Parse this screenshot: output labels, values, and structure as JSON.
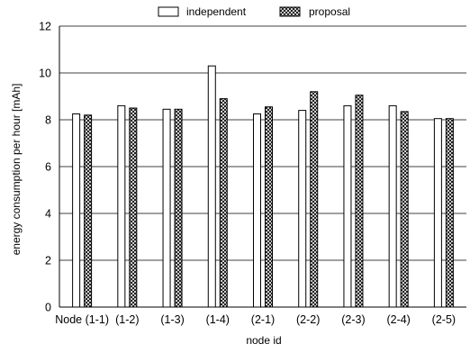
{
  "chart_data": {
    "type": "bar",
    "title": "",
    "xlabel": "node id",
    "ylabel": "energy consumption per hour [mAh]",
    "ylim": [
      0,
      12
    ],
    "yticks": [
      0,
      2,
      4,
      6,
      8,
      10,
      12
    ],
    "grid": true,
    "legend_position": "top",
    "categories": [
      "Node (1-1)",
      "(1-2)",
      "(1-3)",
      "(1-4)",
      "(2-1)",
      "(2-2)",
      "(2-3)",
      "(2-4)",
      "(2-5)"
    ],
    "series": [
      {
        "name": "independent",
        "pattern": "solid-white",
        "values": [
          8.25,
          8.6,
          8.45,
          10.3,
          8.25,
          8.4,
          8.6,
          8.6,
          8.05
        ]
      },
      {
        "name": "proposal",
        "pattern": "crosshatch",
        "values": [
          8.2,
          8.5,
          8.45,
          8.9,
          8.55,
          9.2,
          9.05,
          8.35,
          8.05
        ]
      }
    ]
  }
}
